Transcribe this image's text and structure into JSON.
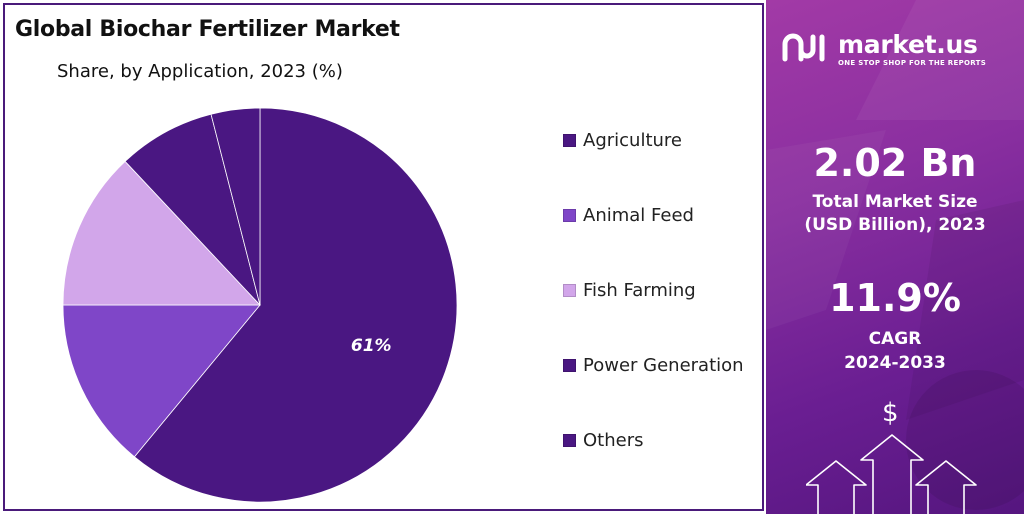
{
  "chart_data": {
    "type": "pie",
    "title": "Global Biochar Fertilizer Market",
    "subtitle": "Share, by Application, 2023 (%)",
    "slices": [
      {
        "name": "Agriculture",
        "value": 61,
        "color": "#4a1782",
        "label": "61%"
      },
      {
        "name": "Animal Feed",
        "value": 14,
        "color": "#7f46c8",
        "label": ""
      },
      {
        "name": "Fish Farming",
        "value": 13,
        "color": "#d2a6ea",
        "label": ""
      },
      {
        "name": "Power Generation",
        "value": 8,
        "color": "#4a1782",
        "label": ""
      },
      {
        "name": "Others",
        "value": 4,
        "color": "#4a1782",
        "label": ""
      }
    ],
    "legend_position": "right"
  },
  "brand": {
    "name": "market.us",
    "tagline": "ONE STOP SHOP FOR THE REPORTS"
  },
  "stats": {
    "market_size_value": "2.02 Bn",
    "market_size_label_1": "Total Market Size",
    "market_size_label_2": "(USD Billion), 2023",
    "cagr_value": "11.9%",
    "cagr_label_1": "CAGR",
    "cagr_label_2": "2024-2033"
  },
  "decor": {
    "dollar_symbol": "$"
  }
}
